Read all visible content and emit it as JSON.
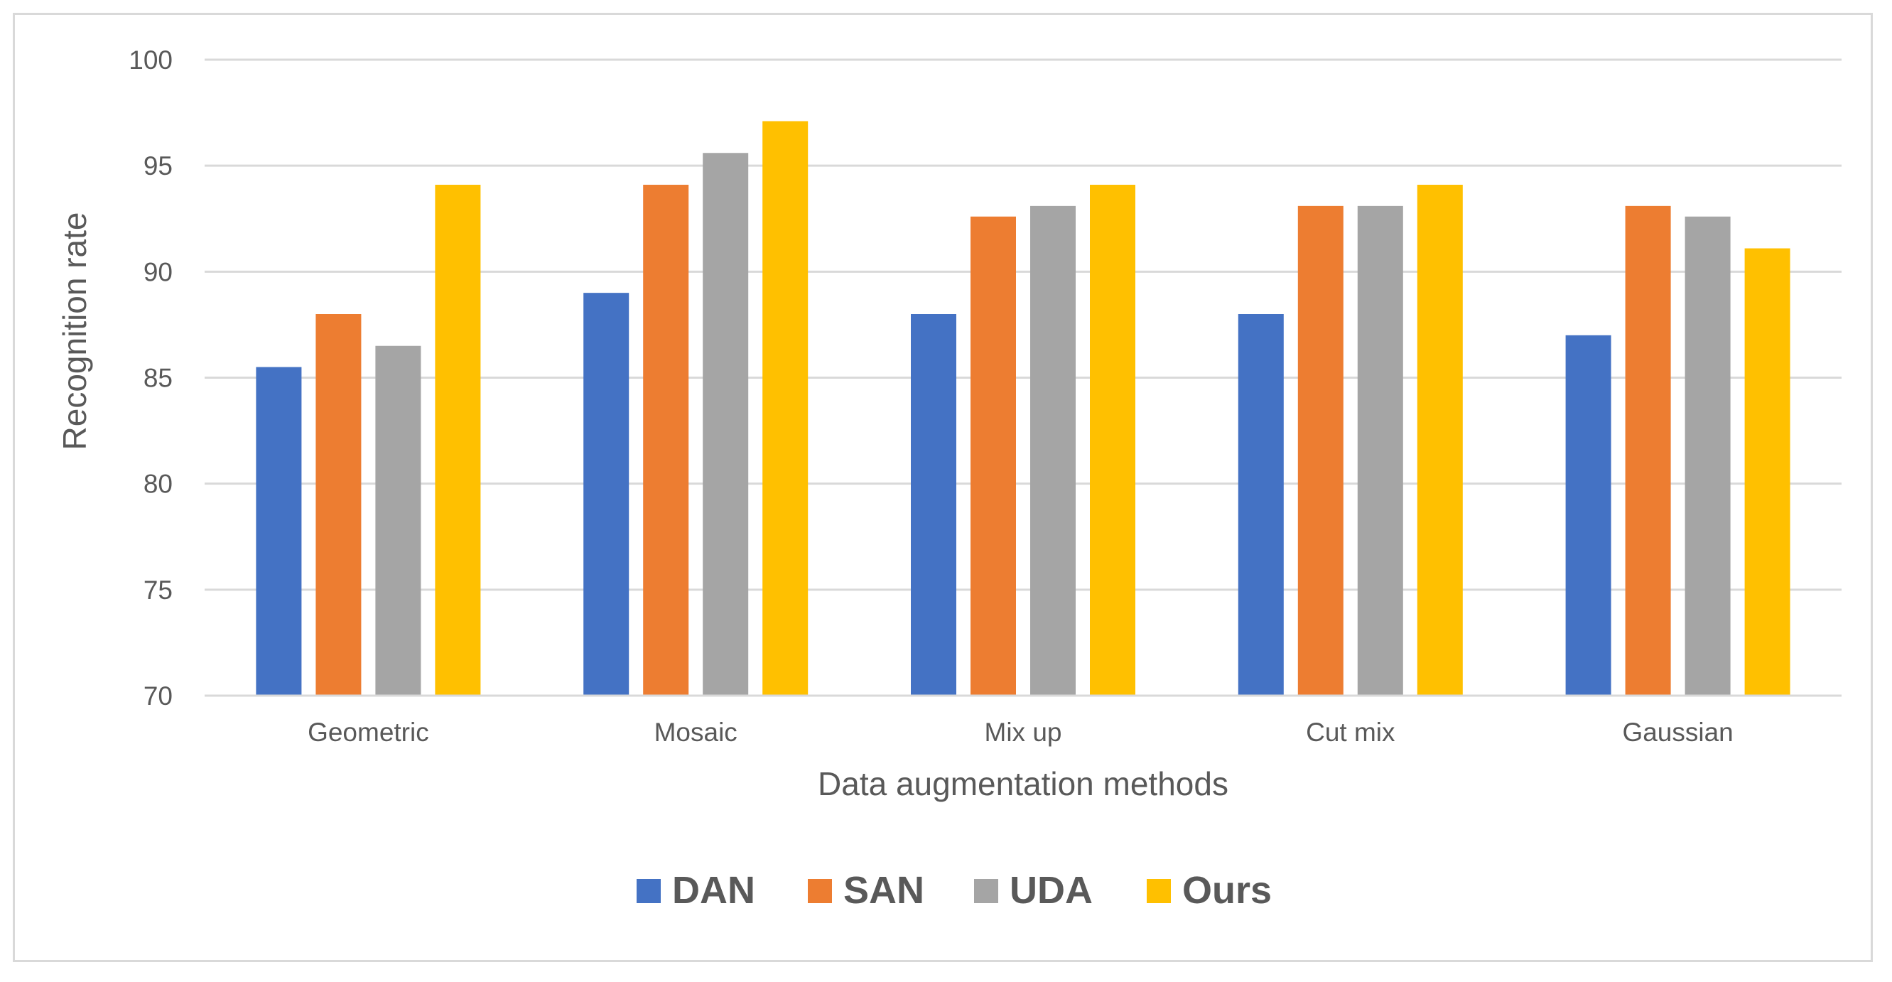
{
  "chart_data": {
    "type": "bar",
    "title": "",
    "xlabel": "Data augmentation methods",
    "ylabel": "Recognition rate",
    "ylim": [
      70,
      100
    ],
    "yticks": [
      70,
      75,
      80,
      85,
      90,
      95,
      100
    ],
    "grid": true,
    "legend_position": "bottom",
    "categories": [
      "Geometric",
      "Mosaic",
      "Mix up",
      "Cut mix",
      "Gaussian"
    ],
    "series": [
      {
        "name": "DAN",
        "color": "#4472c4",
        "values": [
          85.5,
          89,
          88,
          88,
          87
        ]
      },
      {
        "name": "SAN",
        "color": "#ed7d31",
        "values": [
          88,
          94.1,
          92.6,
          93.1,
          93.1
        ]
      },
      {
        "name": "UDA",
        "color": "#a5a5a5",
        "values": [
          86.5,
          95.6,
          93.1,
          93.1,
          92.6
        ]
      },
      {
        "name": "Ours",
        "color": "#ffc000",
        "values": [
          94.1,
          97.1,
          94.1,
          94.1,
          91.1
        ]
      }
    ]
  }
}
